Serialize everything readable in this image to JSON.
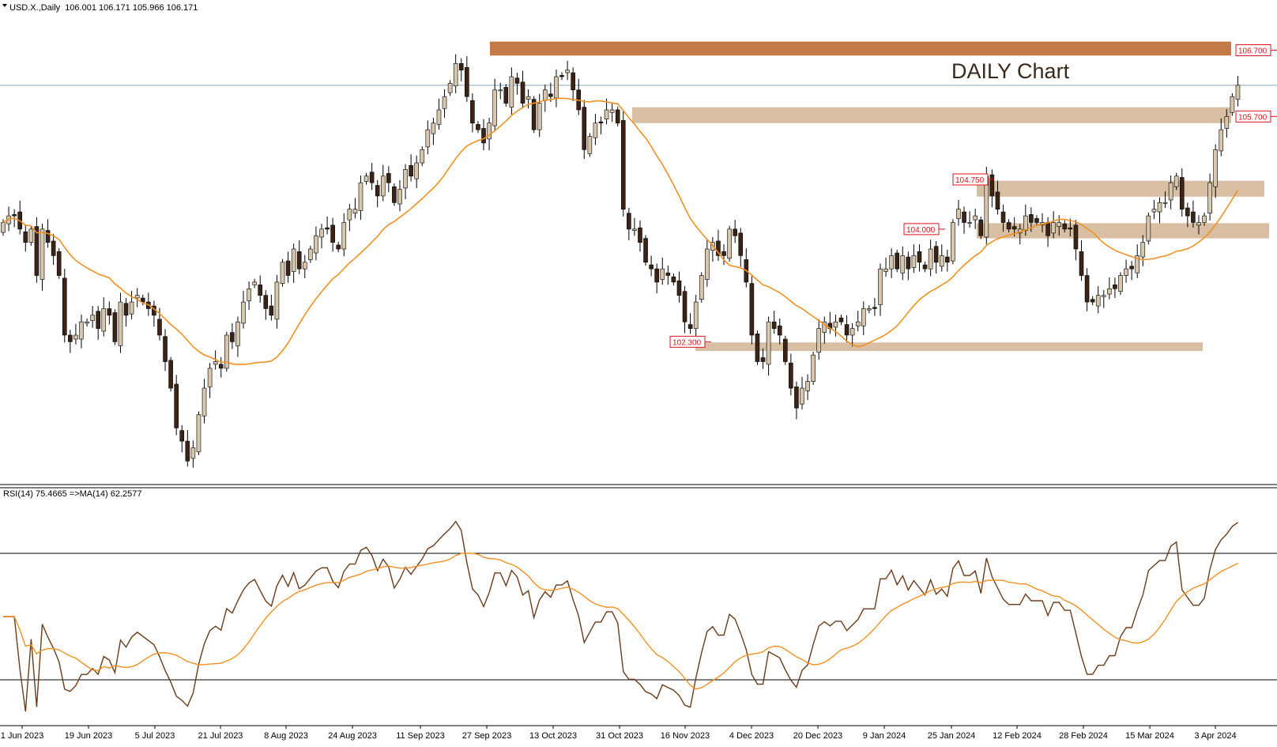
{
  "header": {
    "symbol": "USD.X.,Daily",
    "ohlc": "106.001 106.171 105.966 106.171"
  },
  "annotation": "DAILY Chart",
  "colors": {
    "bull": "#d9c7ad",
    "bear": "#3b2416",
    "wick": "#000000",
    "ma": "#f2901f",
    "rsi": "#6b3b18",
    "rsi_ma": "#f2901f",
    "zone_light": "#d8bfa3",
    "zone_dark": "#c27a47",
    "label_red": "#e0121b",
    "current_line": "#8ca3b8"
  },
  "price_axis": {
    "min": 100.3,
    "max": 107.1
  },
  "rsi_panel": {
    "label": "RSI(14) 75.4665  =>MA(14) 62.2577",
    "min": 20,
    "max": 80,
    "upper_level": 70,
    "lower_level": 30
  },
  "x_labels": [
    "1 Jun 2023",
    "19 Jun 2023",
    "5 Jul 2023",
    "21 Jul 2023",
    "8 Aug 2023",
    "24 Aug 2023",
    "11 Sep 2023",
    "27 Sep 2023",
    "13 Oct 2023",
    "31 Oct 2023",
    "16 Nov 2023",
    "4 Dec 2023",
    "20 Dec 2023",
    "9 Jan 2024",
    "25 Jan 2024",
    "12 Feb 2024",
    "28 Feb 2024",
    "15 Mar 2024",
    "3 Apr 2024"
  ],
  "chart_data": {
    "type": "candlestick",
    "interval": "Daily",
    "current_price": 106.171,
    "levels": [
      {
        "label": "106.700",
        "price": 106.7,
        "zone": [
          106.62,
          106.83
        ],
        "style": "dark"
      },
      {
        "label": "105.700",
        "price": 105.7,
        "zone": [
          105.6,
          105.84
        ],
        "style": "light"
      },
      {
        "label": "104.750",
        "price": 104.75,
        "zone": [
          104.49,
          104.73
        ],
        "style": "light"
      },
      {
        "label": "104.000",
        "price": 104.0,
        "zone": [
          103.86,
          104.09
        ],
        "style": "light"
      },
      {
        "label": "102.300",
        "price": 102.3,
        "zone": [
          102.16,
          102.29
        ],
        "style": "light"
      }
    ],
    "closes": [
      104.1,
      104.2,
      104.2,
      104.0,
      103.8,
      104.0,
      103.3,
      104.0,
      103.8,
      103.6,
      103.3,
      102.4,
      102.3,
      102.4,
      102.6,
      102.6,
      102.7,
      102.5,
      102.8,
      102.7,
      102.3,
      102.9,
      102.7,
      102.9,
      103.0,
      102.9,
      102.8,
      102.7,
      102.4,
      102.0,
      101.6,
      101.0,
      100.8,
      100.5,
      100.7,
      101.2,
      101.6,
      101.9,
      102.0,
      101.9,
      102.4,
      102.3,
      102.6,
      102.9,
      103.1,
      103.2,
      103.0,
      102.8,
      102.7,
      103.2,
      103.5,
      103.3,
      103.7,
      103.4,
      103.5,
      103.7,
      103.9,
      104.0,
      104.0,
      103.8,
      103.7,
      104.1,
      104.3,
      104.3,
      104.7,
      104.8,
      104.7,
      104.5,
      104.8,
      104.7,
      104.4,
      104.6,
      104.9,
      104.8,
      105.0,
      105.2,
      105.5,
      105.6,
      105.8,
      106.0,
      106.2,
      106.5,
      106.4,
      106.0,
      105.6,
      105.5,
      105.3,
      105.6,
      106.1,
      106.1,
      105.9,
      106.3,
      106.2,
      105.9,
      106.0,
      105.5,
      105.9,
      106.1,
      106.0,
      106.3,
      106.3,
      106.4,
      106.1,
      105.8,
      105.2,
      105.4,
      105.6,
      105.6,
      105.8,
      105.8,
      105.6,
      104.3,
      104.0,
      104.0,
      103.8,
      103.5,
      103.4,
      103.2,
      103.4,
      103.3,
      103.2,
      103.0,
      102.6,
      102.5,
      102.9,
      103.3,
      103.7,
      103.8,
      103.6,
      103.6,
      104.0,
      103.9,
      103.6,
      103.2,
      102.4,
      102.0,
      102.0,
      102.6,
      102.5,
      102.4,
      102.0,
      101.6,
      101.3,
      101.6,
      101.7,
      102.1,
      102.5,
      102.6,
      102.5,
      102.6,
      102.6,
      102.4,
      102.5,
      102.6,
      102.8,
      102.8,
      102.8,
      103.4,
      103.4,
      103.6,
      103.4,
      103.6,
      103.4,
      103.6,
      103.5,
      103.4,
      103.7,
      103.5,
      103.6,
      103.5,
      104.1,
      104.3,
      104.1,
      104.1,
      104.2,
      103.9,
      104.8,
      104.5,
      104.3,
      104.1,
      104.0,
      104.0,
      104.0,
      104.2,
      104.1,
      104.1,
      104.1,
      103.9,
      104.1,
      104.1,
      104.0,
      104.0,
      103.7,
      103.3,
      102.9,
      102.9,
      103.0,
      103.0,
      103.1,
      103.1,
      103.3,
      103.4,
      103.4,
      103.6,
      103.8,
      104.2,
      104.3,
      104.4,
      104.4,
      104.7,
      104.8,
      104.3,
      104.2,
      104.1,
      104.1,
      104.2,
      104.7,
      105.2,
      105.5,
      105.7,
      106.0,
      106.171
    ]
  }
}
